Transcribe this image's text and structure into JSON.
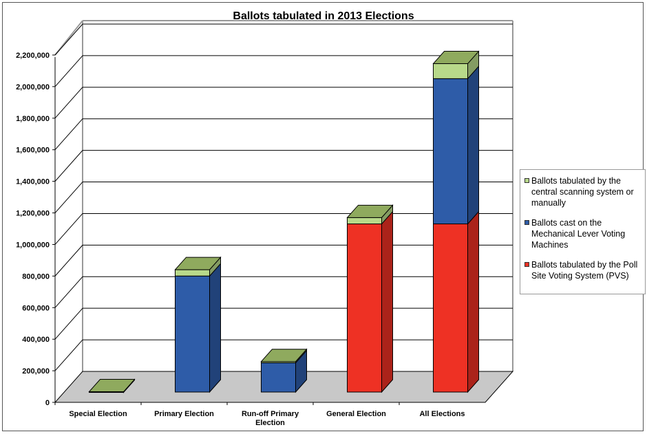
{
  "chart_data": {
    "type": "bar",
    "stacked": true,
    "three_d": true,
    "title": "Ballots tabulated in 2013 Elections",
    "categories": [
      "Special Election",
      "Primary Election",
      "Run-off Primary Election",
      "General Election",
      "All Elections"
    ],
    "category_labels": [
      [
        "Special Election"
      ],
      [
        "Primary Election"
      ],
      [
        "Run-off Primary",
        "Election"
      ],
      [
        "General Election"
      ],
      [
        "All Elections"
      ]
    ],
    "series": [
      {
        "name": "Ballots tabulated by the Poll Site Voting System (PVS)",
        "color": "#ee3124",
        "values": [
          0,
          0,
          0,
          1065000,
          1065000
        ]
      },
      {
        "name": "Ballots cast on the Mechanical Lever Voting Machines",
        "color": "#2e5ca8",
        "values": [
          0,
          735000,
          185000,
          0,
          920000
        ]
      },
      {
        "name": "Ballots tabulated by the central scanning system or manually",
        "color": "#b8d98a",
        "values": [
          2000,
          40000,
          8000,
          40000,
          95000
        ]
      }
    ],
    "ylim": [
      0,
      2200000
    ],
    "yticks": [
      0,
      200000,
      400000,
      600000,
      800000,
      1000000,
      1200000,
      1400000,
      1600000,
      1800000,
      2000000,
      2200000
    ],
    "ytick_labels": [
      "0",
      "200,000",
      "400,000",
      "600,000",
      "800,000",
      "1,000,000",
      "1,200,000",
      "1,400,000",
      "1,600,000",
      "1,800,000",
      "2,000,000",
      "2,200,000"
    ],
    "grid": true,
    "legend_position": "right",
    "legend": [
      {
        "label": "Ballots tabulated by the central scanning system or manually",
        "color": "#b8d98a"
      },
      {
        "label": "Ballots cast on the Mechanical Lever Voting Machines",
        "color": "#2e5ca8"
      },
      {
        "label": "Ballots tabulated by the Poll Site Voting System (PVS)",
        "color": "#ee3124"
      }
    ],
    "colors": {
      "top_face": "#8faa5e",
      "floor": "#c8c8c8",
      "grid": "#000000",
      "wall_frame": "#999999"
    }
  }
}
